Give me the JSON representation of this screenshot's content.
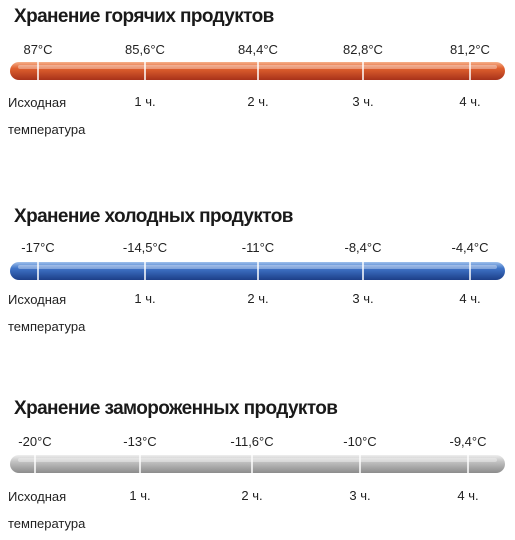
{
  "sections": [
    {
      "title": "Хранение горячих продуктов",
      "temperatures": [
        "87°C",
        "85,6°C",
        "84,4°C",
        "82,8°C",
        "81,2°C"
      ],
      "times": [
        "Исходная температура",
        "1 ч.",
        "2 ч.",
        "3 ч.",
        "4 ч."
      ]
    },
    {
      "title": "Хранение холодных продуктов",
      "temperatures": [
        "-17°C",
        "-14,5°C",
        "-11°C",
        "-8,4°C",
        "-4,4°C"
      ],
      "times": [
        "Исходная температура",
        "1 ч.",
        "2 ч.",
        "3 ч.",
        "4 ч."
      ]
    },
    {
      "title": "Хранение замороженных продуктов",
      "temperatures": [
        "-20°C",
        "-13°C",
        "-11,6°C",
        "-10°C",
        "-9,4°C"
      ],
      "times": [
        "Исходная температура",
        "1 ч.",
        "2 ч.",
        "3 ч.",
        "4 ч."
      ]
    }
  ]
}
